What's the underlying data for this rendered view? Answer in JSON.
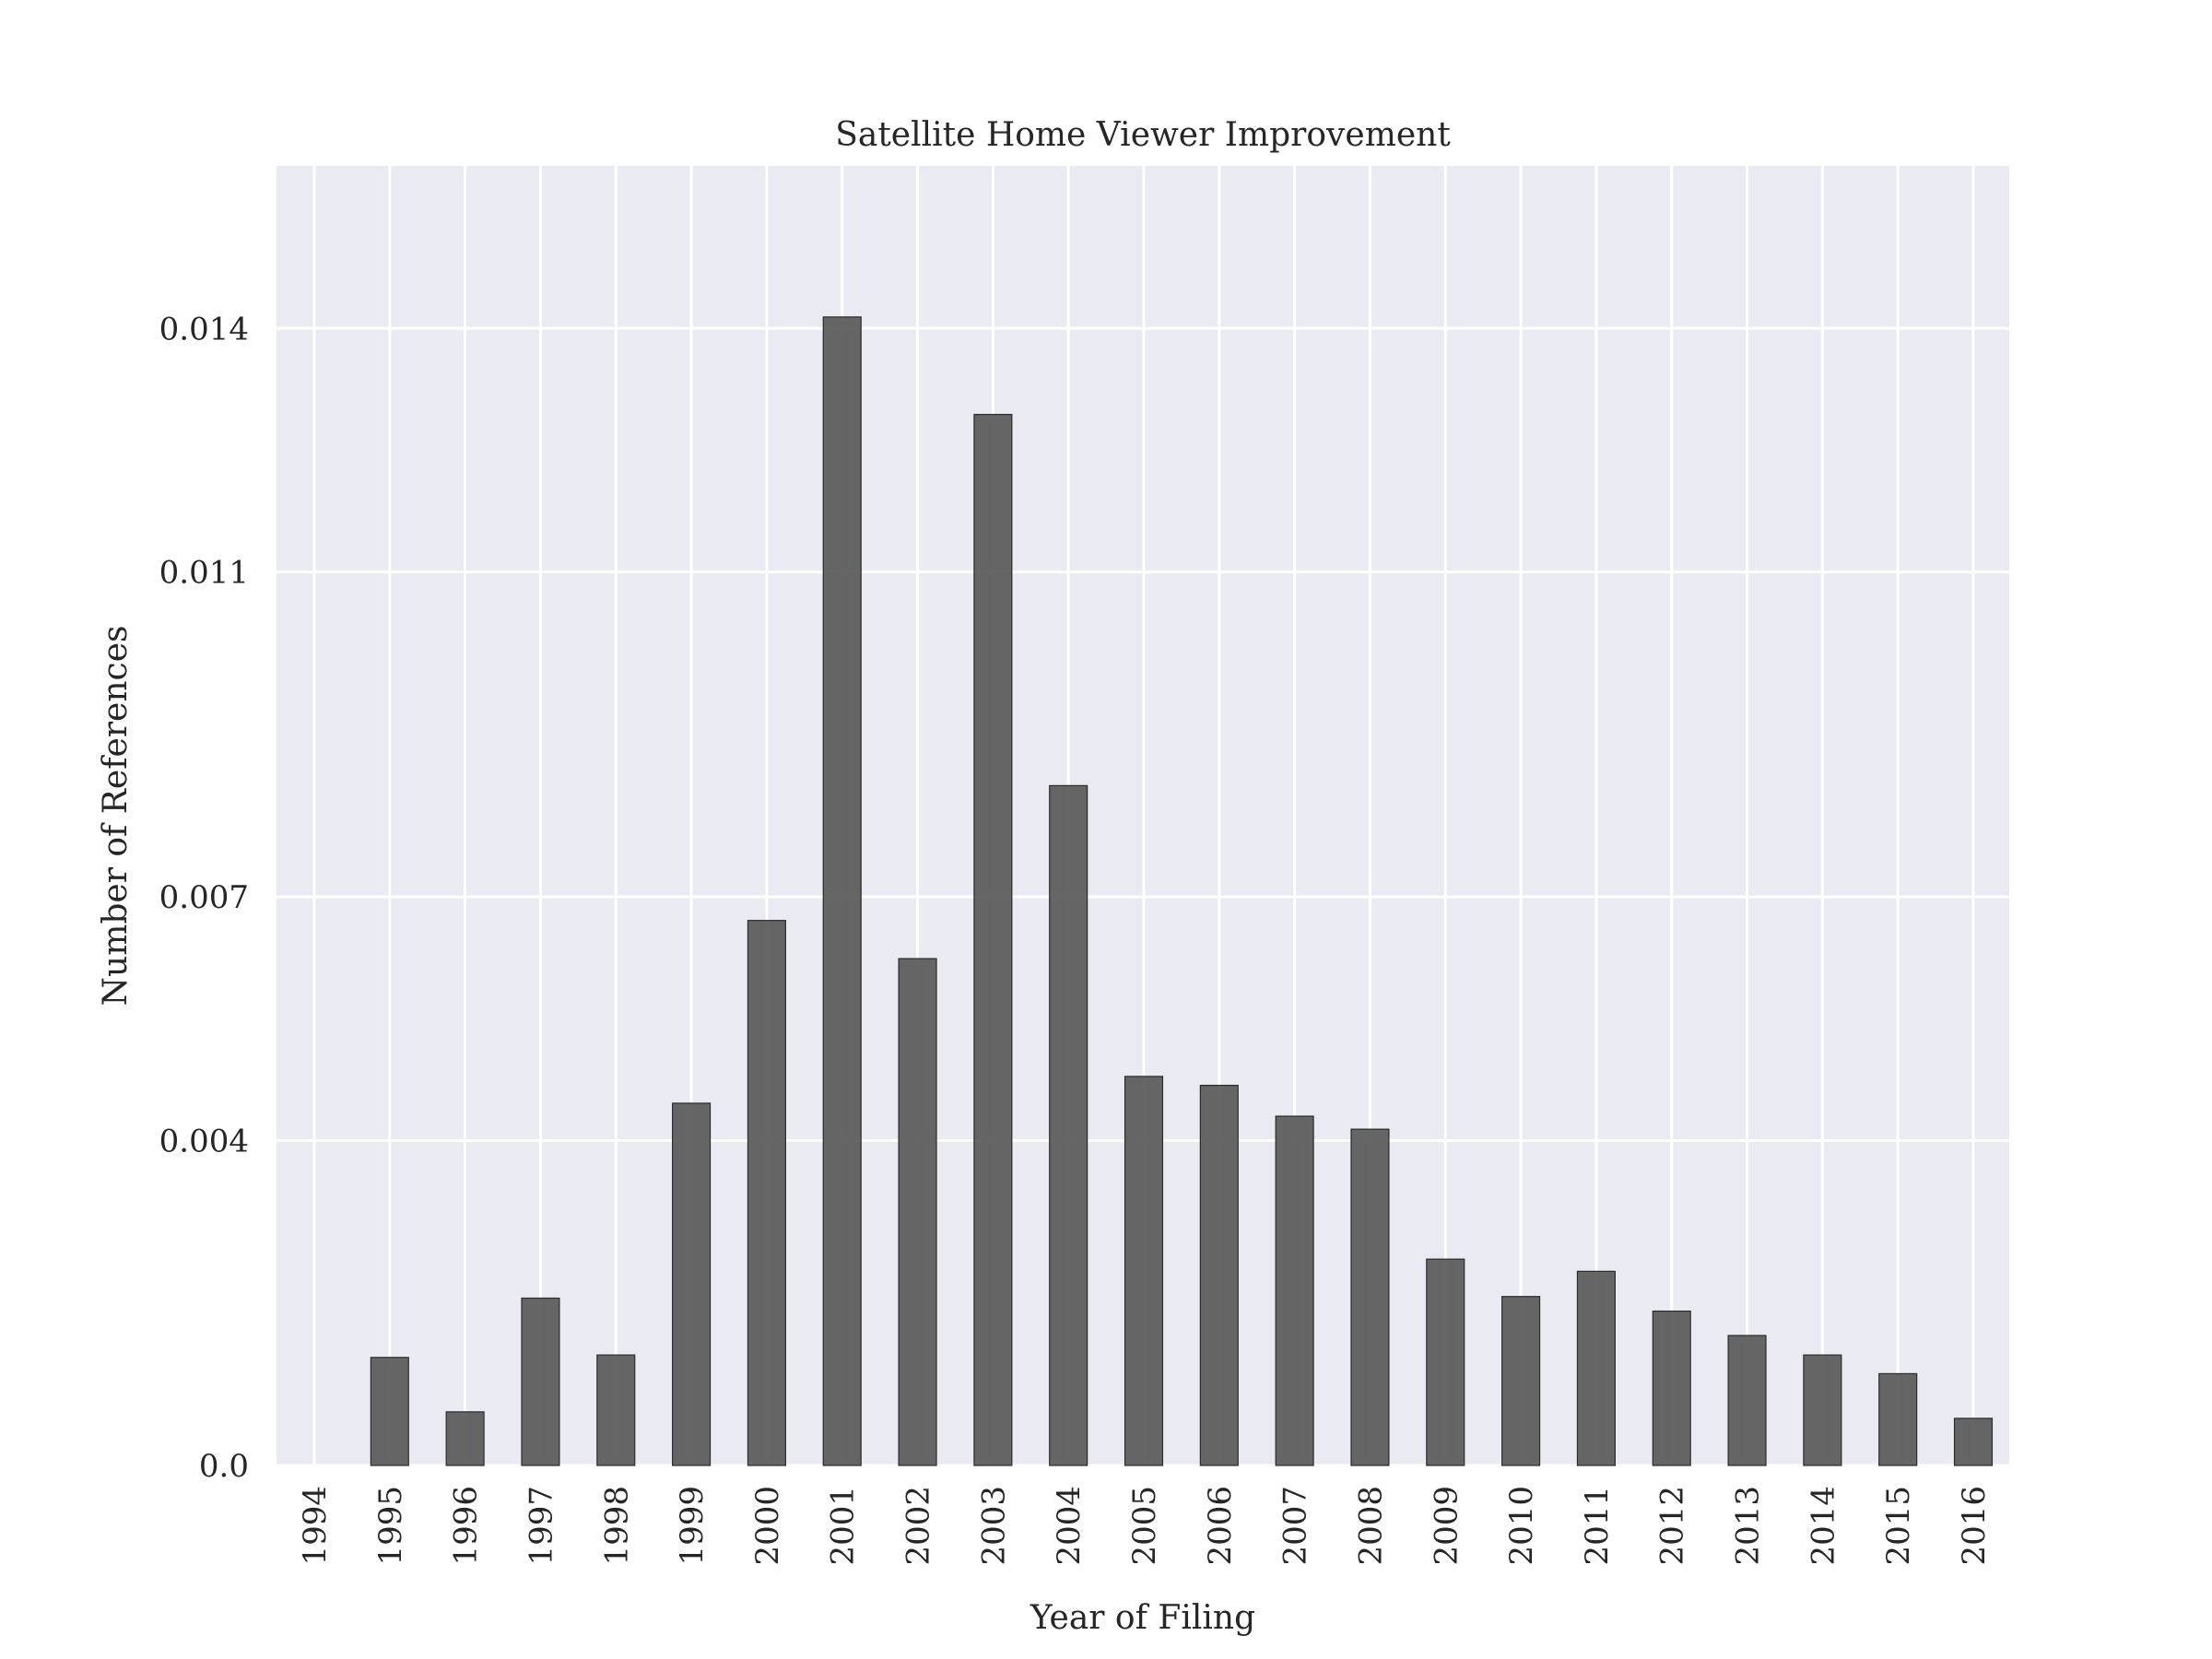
{
  "chart_data": {
    "type": "bar",
    "title": "Satellite Home Viewer Improvement",
    "xlabel": "Year of Filing",
    "ylabel": "Number of References",
    "categories": [
      "1994",
      "1995",
      "1996",
      "1997",
      "1998",
      "1999",
      "2000",
      "2001",
      "2002",
      "2003",
      "2004",
      "2005",
      "2006",
      "2007",
      "2008",
      "2009",
      "2010",
      "2011",
      "2012",
      "2013",
      "2014",
      "2015",
      "2016"
    ],
    "values": [
      0.0,
      0.00133,
      0.00066,
      0.00206,
      0.00136,
      0.00446,
      0.00671,
      0.01414,
      0.00624,
      0.01294,
      0.00837,
      0.00479,
      0.00468,
      0.0043,
      0.00414,
      0.00254,
      0.00208,
      0.00239,
      0.0019,
      0.0016,
      0.00136,
      0.00113,
      0.00058
    ],
    "yticks": [
      0.0,
      0.004,
      0.007,
      0.011,
      0.014
    ],
    "ytick_labels": [
      "0.0",
      "0.004",
      "0.007",
      "0.011",
      "0.014"
    ],
    "ylim": [
      0,
      0.016
    ],
    "grid": true,
    "colors": {
      "background": "#eaeaf2",
      "bar": "#595959",
      "grid": "#ffffff"
    }
  }
}
